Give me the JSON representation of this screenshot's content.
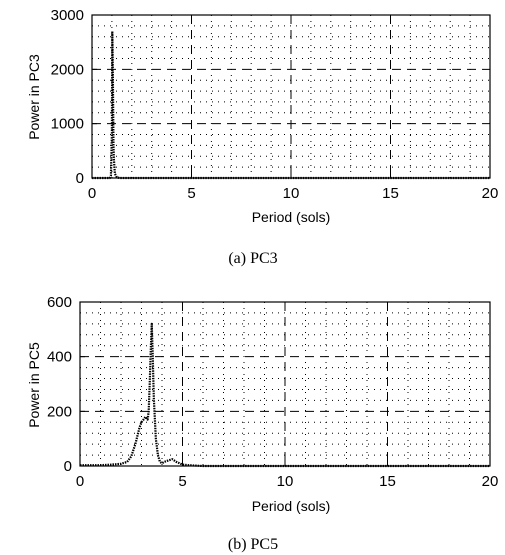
{
  "chart_data": [
    {
      "type": "line",
      "caption": "(a)  PC3",
      "xlabel": "Period (sols)",
      "ylabel": "Power in PC3",
      "xlim": [
        0,
        20
      ],
      "ylim": [
        0,
        3000
      ],
      "xticks": [
        0,
        5,
        10,
        15,
        20
      ],
      "yticks": [
        0,
        1000,
        2000,
        3000
      ],
      "grid": "dashed-major-dotted-minor",
      "series": [
        {
          "x": [
            0.0,
            0.9,
            0.95,
            1.0,
            1.02,
            1.05,
            1.08,
            1.1,
            1.15,
            1.25,
            1.4,
            2,
            5,
            10,
            15,
            20
          ],
          "y": [
            0,
            0,
            40,
            800,
            2700,
            1800,
            600,
            350,
            80,
            10,
            0,
            0,
            0,
            0,
            0,
            0
          ]
        }
      ]
    },
    {
      "type": "line",
      "caption": "(b)  PC5",
      "xlabel": "Period (sols)",
      "ylabel": "Power in PC5",
      "xlim": [
        0,
        20
      ],
      "ylim": [
        0,
        600
      ],
      "xticks": [
        0,
        5,
        10,
        15,
        20
      ],
      "yticks": [
        0,
        200,
        400,
        600
      ],
      "grid": "dashed-major-dotted-minor",
      "series": [
        {
          "x": [
            0,
            1,
            1.5,
            2.0,
            2.3,
            2.5,
            2.7,
            2.8,
            2.9,
            3.0,
            3.1,
            3.2,
            3.3,
            3.35,
            3.4,
            3.45,
            3.5,
            3.55,
            3.6,
            3.7,
            3.8,
            3.9,
            4.0,
            4.1,
            4.3,
            4.5,
            4.7,
            5.0,
            5.5,
            6,
            10,
            15,
            20
          ],
          "y": [
            3,
            3,
            5,
            8,
            15,
            35,
            80,
            110,
            140,
            160,
            170,
            180,
            170,
            200,
            300,
            420,
            520,
            400,
            250,
            100,
            40,
            15,
            10,
            15,
            20,
            25,
            15,
            5,
            2,
            0,
            0,
            0,
            0
          ]
        }
      ]
    }
  ]
}
